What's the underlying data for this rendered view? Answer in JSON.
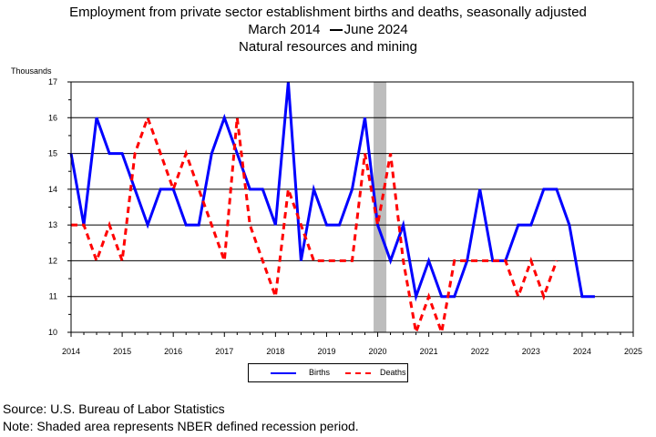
{
  "chart_data": {
    "type": "line",
    "title": "Employment from private sector establishment births and deaths, seasonally adjusted",
    "subtitle_start": "March 2014",
    "subtitle_end": "June 2024",
    "subtitle2": "Natural resources and mining",
    "ylabel": "Thousands",
    "xlabel": "",
    "ylim": [
      10,
      17
    ],
    "yticks": [
      "10",
      "11",
      "12",
      "13",
      "14",
      "15",
      "16",
      "17"
    ],
    "xlim": [
      2014,
      2025
    ],
    "xticks": [
      "2014",
      "2015",
      "2016",
      "2017",
      "2018",
      "2019",
      "2020",
      "2021",
      "2022",
      "2023",
      "2024",
      "2025"
    ],
    "grid": true,
    "legend_position": "bottom-center",
    "recession": {
      "start": 2019.92,
      "end": 2020.17
    },
    "series": [
      {
        "name": "Births",
        "style": "solid",
        "color": "#0000ff",
        "points": [
          [
            2014.0,
            15
          ],
          [
            2014.25,
            13
          ],
          [
            2014.5,
            16
          ],
          [
            2014.75,
            15
          ],
          [
            2015.0,
            15
          ],
          [
            2015.25,
            14
          ],
          [
            2015.5,
            13
          ],
          [
            2015.75,
            14
          ],
          [
            2016.0,
            14
          ],
          [
            2016.25,
            13
          ],
          [
            2016.5,
            13
          ],
          [
            2016.75,
            15
          ],
          [
            2017.0,
            16
          ],
          [
            2017.25,
            15
          ],
          [
            2017.5,
            14
          ],
          [
            2017.75,
            14
          ],
          [
            2018.0,
            13
          ],
          [
            2018.25,
            17
          ],
          [
            2018.5,
            12
          ],
          [
            2018.75,
            14
          ],
          [
            2019.0,
            13
          ],
          [
            2019.25,
            13
          ],
          [
            2019.5,
            14
          ],
          [
            2019.75,
            16
          ],
          [
            2020.0,
            13
          ],
          [
            2020.25,
            12
          ],
          [
            2020.5,
            13
          ],
          [
            2020.75,
            11
          ],
          [
            2021.0,
            12
          ],
          [
            2021.25,
            11
          ],
          [
            2021.5,
            11
          ],
          [
            2021.75,
            12
          ],
          [
            2022.0,
            14
          ],
          [
            2022.25,
            12
          ],
          [
            2022.5,
            12
          ],
          [
            2022.75,
            13
          ],
          [
            2023.0,
            13
          ],
          [
            2023.25,
            14
          ],
          [
            2023.5,
            14
          ],
          [
            2023.75,
            13
          ],
          [
            2024.0,
            11
          ],
          [
            2024.25,
            11
          ]
        ]
      },
      {
        "name": "Deaths",
        "style": "dashed",
        "color": "#ff0000",
        "points": [
          [
            2014.0,
            13
          ],
          [
            2014.25,
            13
          ],
          [
            2014.5,
            12
          ],
          [
            2014.75,
            13
          ],
          [
            2015.0,
            12
          ],
          [
            2015.25,
            15
          ],
          [
            2015.5,
            16
          ],
          [
            2015.75,
            15
          ],
          [
            2016.0,
            14
          ],
          [
            2016.25,
            15
          ],
          [
            2016.5,
            14
          ],
          [
            2016.75,
            13
          ],
          [
            2017.0,
            12
          ],
          [
            2017.25,
            16
          ],
          [
            2017.5,
            13
          ],
          [
            2017.75,
            12
          ],
          [
            2018.0,
            11
          ],
          [
            2018.25,
            14
          ],
          [
            2018.5,
            13
          ],
          [
            2018.75,
            12
          ],
          [
            2019.0,
            12
          ],
          [
            2019.25,
            12
          ],
          [
            2019.5,
            12
          ],
          [
            2019.75,
            15
          ],
          [
            2020.0,
            13
          ],
          [
            2020.25,
            15
          ],
          [
            2020.5,
            12
          ],
          [
            2020.75,
            10
          ],
          [
            2021.0,
            11
          ],
          [
            2021.25,
            10
          ],
          [
            2021.5,
            12
          ],
          [
            2021.75,
            12
          ],
          [
            2022.0,
            12
          ],
          [
            2022.25,
            12
          ],
          [
            2022.5,
            12
          ],
          [
            2022.75,
            11
          ],
          [
            2023.0,
            12
          ],
          [
            2023.25,
            11
          ],
          [
            2023.5,
            12
          ]
        ]
      }
    ]
  },
  "footer": {
    "source": "Source: U.S. Bureau of Labor Statistics",
    "note": "Note: Shaded area represents NBER defined recession period."
  }
}
